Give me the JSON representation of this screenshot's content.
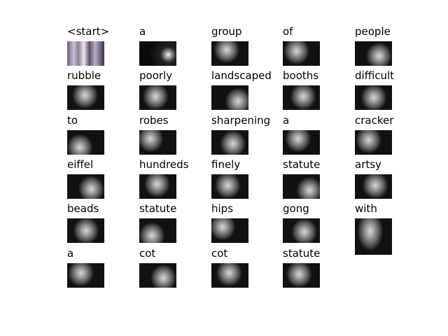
{
  "cells": [
    {
      "word": "<start>",
      "style": "photo"
    },
    {
      "word": "a",
      "style": "dark"
    },
    {
      "word": "group",
      "style": "att"
    },
    {
      "word": "of",
      "style": "att"
    },
    {
      "word": "people",
      "style": "att"
    },
    {
      "word": "rubble",
      "style": "att"
    },
    {
      "word": "poorly",
      "style": "att"
    },
    {
      "word": "landscaped",
      "style": "att"
    },
    {
      "word": "booths",
      "style": "att"
    },
    {
      "word": "difficult",
      "style": "att"
    },
    {
      "word": "to",
      "style": "att"
    },
    {
      "word": "robes",
      "style": "att"
    },
    {
      "word": "sharpening",
      "style": "att"
    },
    {
      "word": "a",
      "style": "att"
    },
    {
      "word": "cracker",
      "style": "att"
    },
    {
      "word": "eiffel",
      "style": "att"
    },
    {
      "word": "hundreds",
      "style": "att"
    },
    {
      "word": "finely",
      "style": "att"
    },
    {
      "word": "statute",
      "style": "att"
    },
    {
      "word": "artsy",
      "style": "att"
    },
    {
      "word": "beads",
      "style": "att"
    },
    {
      "word": "statute",
      "style": "att"
    },
    {
      "word": "hips",
      "style": "att"
    },
    {
      "word": "gong",
      "style": "att"
    },
    {
      "word": "with",
      "style": "att"
    },
    {
      "word": "a",
      "style": "att"
    },
    {
      "word": "cot",
      "style": "att"
    },
    {
      "word": "cot",
      "style": "att"
    },
    {
      "word": "statute",
      "style": "att"
    }
  ]
}
